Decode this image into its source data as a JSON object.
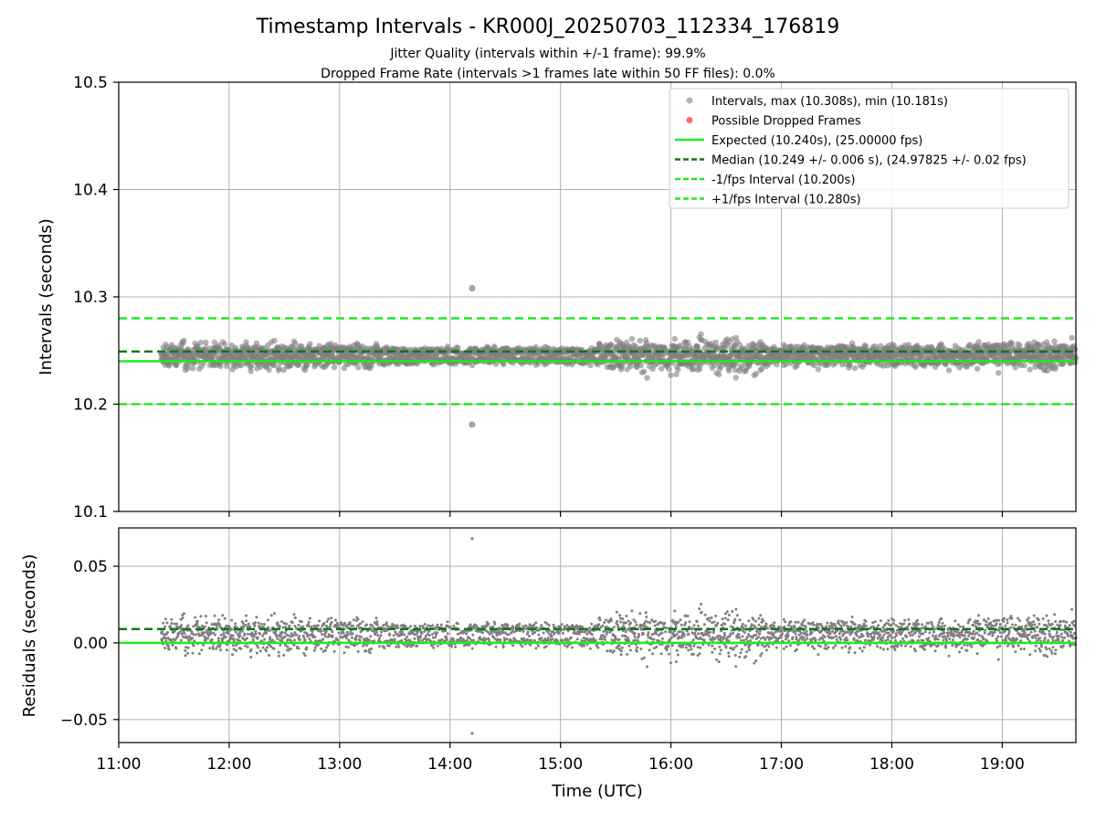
{
  "title": "Timestamp Intervals - KR000J_20250703_112334_176819",
  "subtitle_1": "Jitter Quality (intervals within +/-1 frame): 99.9%",
  "subtitle_2": "Dropped Frame Rate (intervals >1 frames late within 50 FF files): 0.0%",
  "colors": {
    "points": "#808080",
    "dropped": "#ff4d4d",
    "expected": "#22e822",
    "median": "#117711",
    "interval": "#22e822",
    "grid": "#b0b0b0"
  },
  "chart_data": [
    {
      "type": "scatter",
      "name": "intervals-panel",
      "ylabel": "Intervals (seconds)",
      "xlabel": "",
      "xlim": [
        "11:00",
        "19:40"
      ],
      "ylim": [
        10.1,
        10.5
      ],
      "y_ticks": [
        "10.1",
        "10.2",
        "10.3",
        "10.4",
        "10.5"
      ],
      "y_tick_values": [
        10.1,
        10.2,
        10.3,
        10.4,
        10.5
      ],
      "x_tick_values": [
        "12:00",
        "13:00",
        "14:00",
        "15:00",
        "16:00",
        "17:00",
        "18:00",
        "19:00"
      ],
      "grid": true,
      "legend_position": "top-right",
      "data_start": "11:23",
      "data_end": "19:40",
      "point_count": 2900,
      "series": [
        {
          "name": "Intervals, max (10.308s), min (10.181s)",
          "kind": "scatter"
        },
        {
          "name": "Possible Dropped Frames",
          "kind": "scatter"
        },
        {
          "name": "Expected (10.240s), (25.00000 fps)",
          "kind": "hline",
          "value": 10.24
        },
        {
          "name": "Median (10.249 +/- 0.006 s), (24.97825 +/- 0.02 fps)",
          "kind": "hline",
          "value": 10.249
        },
        {
          "name": "-1/fps Interval (10.200s)",
          "kind": "hline",
          "value": 10.2
        },
        {
          "name": "+1/fps Interval (10.280s)",
          "kind": "hline",
          "value": 10.28
        }
      ],
      "outliers": [
        {
          "x": "14:12",
          "y": 10.308
        },
        {
          "x": "14:12",
          "y": 10.181
        }
      ]
    },
    {
      "type": "scatter",
      "name": "residuals-panel",
      "ylabel": "Residuals (seconds)",
      "xlabel": "Time (UTC)",
      "xlim": [
        "11:00",
        "19:40"
      ],
      "ylim": [
        -0.065,
        0.075
      ],
      "y_ticks": [
        "−0.05",
        "0.00",
        "0.05"
      ],
      "y_tick_values": [
        -0.05,
        0.0,
        0.05
      ],
      "x_ticks": [
        "11:00",
        "12:00",
        "13:00",
        "14:00",
        "15:00",
        "16:00",
        "17:00",
        "18:00",
        "19:00"
      ],
      "x_tick_values": [
        "11:00",
        "12:00",
        "13:00",
        "14:00",
        "15:00",
        "16:00",
        "17:00",
        "18:00",
        "19:00"
      ],
      "grid": true,
      "series": [
        {
          "kind": "scatter"
        },
        {
          "kind": "hline",
          "value": 0.0
        },
        {
          "kind": "hline",
          "value": 0.009
        }
      ],
      "outliers": [
        {
          "x": "14:12",
          "y": 0.068
        },
        {
          "x": "14:12",
          "y": -0.059
        }
      ]
    }
  ]
}
